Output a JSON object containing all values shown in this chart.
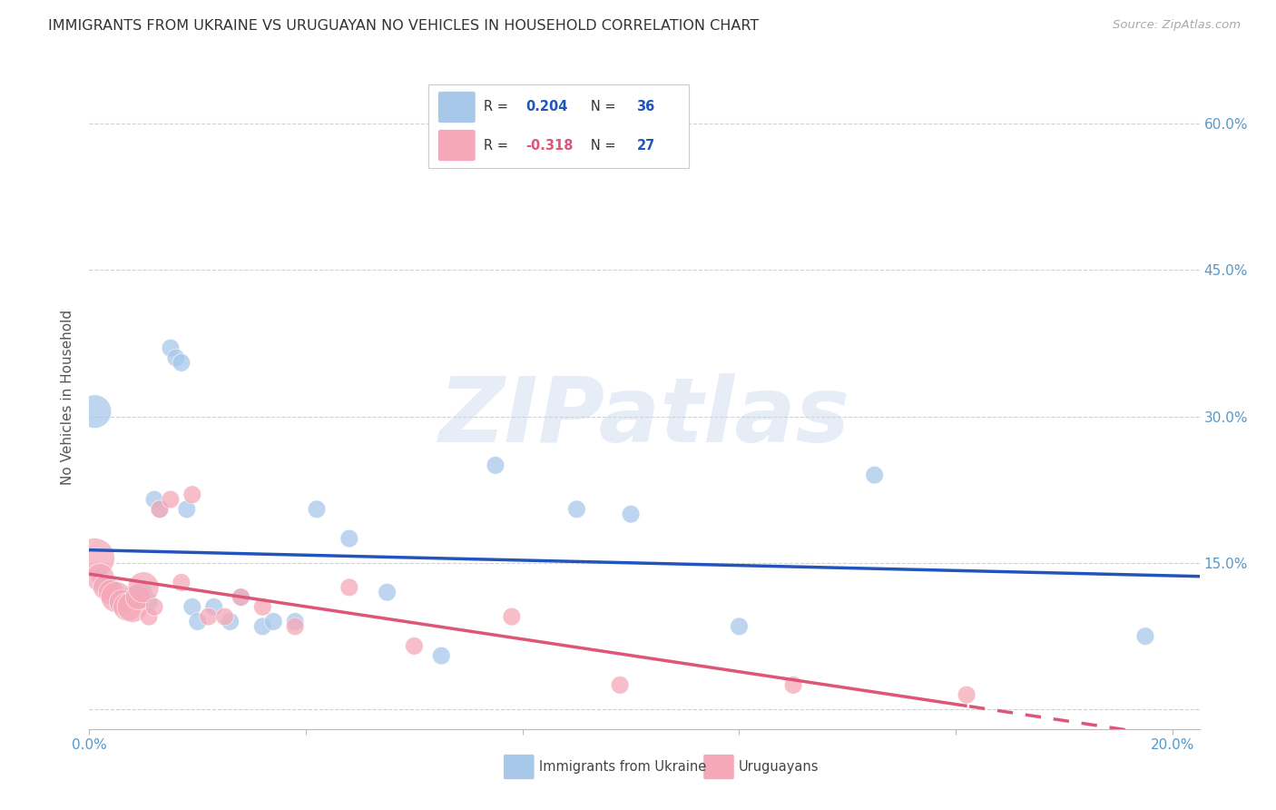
{
  "title": "IMMIGRANTS FROM UKRAINE VS URUGUAYAN NO VEHICLES IN HOUSEHOLD CORRELATION CHART",
  "source": "Source: ZipAtlas.com",
  "ylabel": "No Vehicles in Household",
  "xlim": [
    0.0,
    0.205
  ],
  "ylim": [
    -0.02,
    0.66
  ],
  "ytick_vals": [
    0.0,
    0.15,
    0.3,
    0.45,
    0.6
  ],
  "xtick_vals": [
    0.0,
    0.04,
    0.08,
    0.12,
    0.16,
    0.2
  ],
  "background_color": "#ffffff",
  "grid_color": "#cccccc",
  "watermark_text": "ZIPatlas",
  "ukraine_R": 0.204,
  "ukraine_N": 36,
  "uruguayan_R": -0.318,
  "uruguayan_N": 27,
  "ukraine_color": "#a8c8ea",
  "uruguayan_color": "#f5a8b8",
  "ukraine_line_color": "#2255bb",
  "uruguayan_line_color": "#dd5577",
  "ukraine_x": [
    0.001,
    0.002,
    0.003,
    0.004,
    0.005,
    0.006,
    0.007,
    0.007,
    0.008,
    0.009,
    0.01,
    0.011,
    0.012,
    0.013,
    0.015,
    0.016,
    0.017,
    0.018,
    0.019,
    0.02,
    0.023,
    0.026,
    0.028,
    0.032,
    0.034,
    0.038,
    0.042,
    0.048,
    0.055,
    0.065,
    0.075,
    0.09,
    0.1,
    0.12,
    0.145,
    0.195
  ],
  "ukraine_y": [
    0.305,
    0.135,
    0.125,
    0.125,
    0.115,
    0.115,
    0.115,
    0.115,
    0.115,
    0.12,
    0.12,
    0.11,
    0.215,
    0.205,
    0.37,
    0.36,
    0.355,
    0.205,
    0.105,
    0.09,
    0.105,
    0.09,
    0.115,
    0.085,
    0.09,
    0.09,
    0.205,
    0.175,
    0.12,
    0.055,
    0.25,
    0.205,
    0.2,
    0.085,
    0.24,
    0.075
  ],
  "ukraine_sizes": [
    700,
    200,
    200,
    200,
    200,
    200,
    200,
    200,
    200,
    200,
    200,
    200,
    200,
    200,
    200,
    200,
    200,
    200,
    200,
    200,
    200,
    200,
    200,
    200,
    200,
    200,
    200,
    200,
    200,
    200,
    200,
    200,
    200,
    200,
    200,
    200
  ],
  "uruguayan_x": [
    0.001,
    0.002,
    0.003,
    0.004,
    0.005,
    0.006,
    0.007,
    0.008,
    0.009,
    0.01,
    0.011,
    0.012,
    0.013,
    0.015,
    0.017,
    0.019,
    0.022,
    0.025,
    0.028,
    0.032,
    0.038,
    0.048,
    0.06,
    0.078,
    0.098,
    0.13,
    0.162
  ],
  "uruguayan_y": [
    0.155,
    0.135,
    0.125,
    0.12,
    0.115,
    0.11,
    0.105,
    0.105,
    0.115,
    0.125,
    0.095,
    0.105,
    0.205,
    0.215,
    0.13,
    0.22,
    0.095,
    0.095,
    0.115,
    0.105,
    0.085,
    0.125,
    0.065,
    0.095,
    0.025,
    0.025,
    0.015
  ],
  "uruguayan_sizes": [
    1000,
    500,
    400,
    400,
    600,
    400,
    500,
    600,
    400,
    600,
    200,
    200,
    200,
    200,
    200,
    200,
    200,
    200,
    200,
    200,
    200,
    200,
    200,
    200,
    200,
    200,
    200
  ],
  "legend_ukraine_label": "Immigrants from Ukraine",
  "legend_uruguayan_label": "Uruguayans"
}
